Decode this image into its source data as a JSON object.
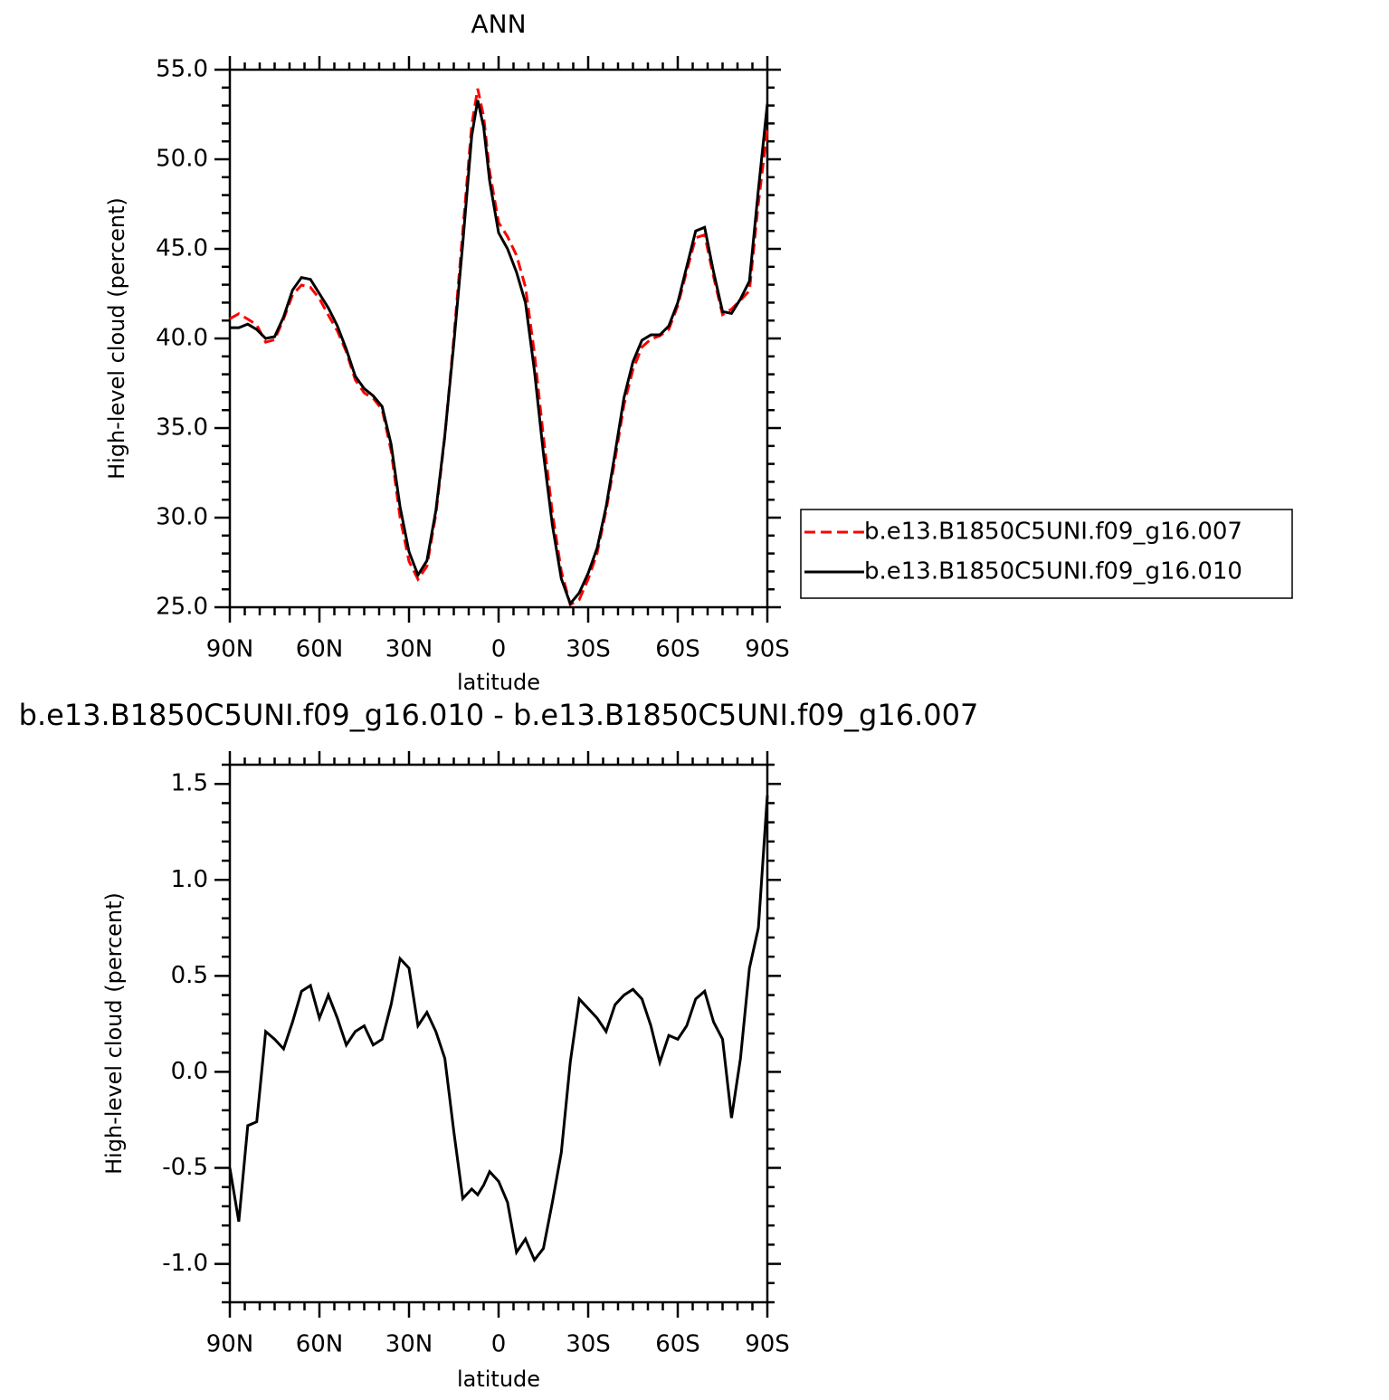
{
  "chart_data": [
    {
      "type": "line",
      "title": "ANN",
      "x_label": "latitude",
      "y_label": "High-level cloud (percent)",
      "x": [
        90,
        87,
        84,
        81,
        78,
        75,
        72,
        69,
        66,
        63,
        60,
        57,
        54,
        51,
        48,
        45,
        42,
        39,
        36,
        33,
        30,
        27,
        24,
        21,
        18,
        15,
        12,
        9,
        7,
        5,
        3,
        0,
        -3,
        -6,
        -9,
        -12,
        -15,
        -18,
        -21,
        -24,
        -27,
        -30,
        -33,
        -36,
        -39,
        -42,
        -45,
        -48,
        -51,
        -54,
        -57,
        -60,
        -63,
        -66,
        -69,
        -72,
        -75,
        -78,
        -81,
        -84,
        -87,
        -90
      ],
      "series": [
        {
          "name": "b.e13.B1850C5UNI.f09_g16.007",
          "color": "#ff0000",
          "line_style": "dashed",
          "values": [
            41.1,
            41.38,
            41.08,
            40.76,
            39.79,
            39.93,
            41.08,
            42.44,
            42.98,
            42.85,
            42.22,
            41.3,
            40.42,
            39.26,
            37.69,
            36.96,
            36.66,
            36.03,
            33.75,
            30.01,
            27.56,
            26.56,
            27.29,
            30.19,
            34.53,
            40.01,
            45.96,
            51.91,
            53.94,
            52.39,
            49.32,
            46.47,
            45.68,
            44.64,
            42.87,
            39.18,
            34.52,
            30.28,
            27.02,
            25.15,
            25.42,
            26.57,
            28.02,
            30.39,
            33.25,
            36.3,
            38.27,
            39.52,
            39.96,
            40.15,
            40.51,
            41.83,
            43.76,
            45.62,
            45.78,
            43.44,
            41.33,
            41.64,
            42.13,
            42.66,
            47.55,
            51.66
          ]
        },
        {
          "name": "b.e13.B1850C5UNI.f09_g16.010",
          "color": "#000000",
          "line_style": "solid",
          "values": [
            40.6,
            40.6,
            40.8,
            40.5,
            40.0,
            40.1,
            41.2,
            42.7,
            43.4,
            43.3,
            42.5,
            41.7,
            40.7,
            39.4,
            37.9,
            37.2,
            36.8,
            36.2,
            34.1,
            30.6,
            28.1,
            26.8,
            27.6,
            30.4,
            34.6,
            39.7,
            45.3,
            51.3,
            53.3,
            51.8,
            48.8,
            45.9,
            45.0,
            43.7,
            42.0,
            38.2,
            33.6,
            29.6,
            26.6,
            25.2,
            25.8,
            26.9,
            28.3,
            30.6,
            33.6,
            36.7,
            38.7,
            39.9,
            40.2,
            40.2,
            40.7,
            42.0,
            44.0,
            46.0,
            46.2,
            43.7,
            41.5,
            41.4,
            42.2,
            43.2,
            48.3,
            53.1
          ]
        }
      ],
      "xlim": [
        90,
        -90
      ],
      "xticks": [
        {
          "value": 90,
          "label": "90N"
        },
        {
          "value": 60,
          "label": "60N"
        },
        {
          "value": 30,
          "label": "30N"
        },
        0,
        {
          "value": -30,
          "label": "30S"
        },
        {
          "value": -60,
          "label": "60S"
        },
        {
          "value": -90,
          "label": "90S"
        }
      ],
      "ylim": [
        25,
        55
      ],
      "yticks": [
        {
          "value": 25,
          "label": "25.0"
        },
        {
          "value": 30,
          "label": "30.0"
        },
        {
          "value": 35,
          "label": "35.0"
        },
        {
          "value": 40,
          "label": "40.0"
        },
        {
          "value": 45,
          "label": "45.0"
        },
        {
          "value": 50,
          "label": "50.0"
        },
        {
          "value": 55,
          "label": "55.0"
        }
      ],
      "legend": "right"
    },
    {
      "type": "line",
      "title": "b.e13.B1850C5UNI.f09_g16.010 - b.e13.B1850C5UNI.f09_g16.007",
      "x_label": "latitude",
      "y_label": "High-level cloud (percent)",
      "x": [
        90,
        87,
        84,
        81,
        78,
        75,
        72,
        69,
        66,
        63,
        60,
        57,
        54,
        51,
        48,
        45,
        42,
        39,
        36,
        33,
        30,
        27,
        24,
        21,
        18,
        15,
        12,
        9,
        7,
        5,
        3,
        0,
        -3,
        -6,
        -9,
        -12,
        -15,
        -18,
        -21,
        -24,
        -27,
        -30,
        -33,
        -36,
        -39,
        -42,
        -45,
        -48,
        -51,
        -54,
        -57,
        -60,
        -63,
        -66,
        -69,
        -72,
        -75,
        -78,
        -81,
        -84,
        -87,
        -90
      ],
      "color": "#000000",
      "values": [
        -0.5,
        -0.78,
        -0.28,
        -0.26,
        0.21,
        0.17,
        0.12,
        0.26,
        0.42,
        0.45,
        0.28,
        0.4,
        0.28,
        0.14,
        0.21,
        0.24,
        0.14,
        0.17,
        0.35,
        0.59,
        0.54,
        0.24,
        0.31,
        0.21,
        0.07,
        -0.31,
        -0.66,
        -0.61,
        -0.64,
        -0.59,
        -0.52,
        -0.57,
        -0.68,
        -0.94,
        -0.87,
        -0.98,
        -0.92,
        -0.68,
        -0.42,
        0.05,
        0.38,
        0.33,
        0.28,
        0.21,
        0.35,
        0.4,
        0.43,
        0.38,
        0.24,
        0.05,
        0.19,
        0.17,
        0.24,
        0.38,
        0.42,
        0.26,
        0.17,
        -0.24,
        0.07,
        0.54,
        0.75,
        1.44
      ],
      "xlim": [
        90,
        -90
      ],
      "xticks": [
        {
          "value": 90,
          "label": "90N"
        },
        {
          "value": 60,
          "label": "60N"
        },
        {
          "value": 30,
          "label": "30N"
        },
        0,
        {
          "value": -30,
          "label": "30S"
        },
        {
          "value": -60,
          "label": "60S"
        },
        {
          "value": -90,
          "label": "90S"
        }
      ],
      "ylim": [
        -1.2,
        1.6
      ],
      "yticks": [
        {
          "value": -1.0,
          "label": "-1.0"
        },
        -0.5,
        {
          "value": 0,
          "label": "0.0"
        },
        0.5,
        {
          "value": 1.0,
          "label": "1.0"
        },
        1.5
      ]
    }
  ]
}
